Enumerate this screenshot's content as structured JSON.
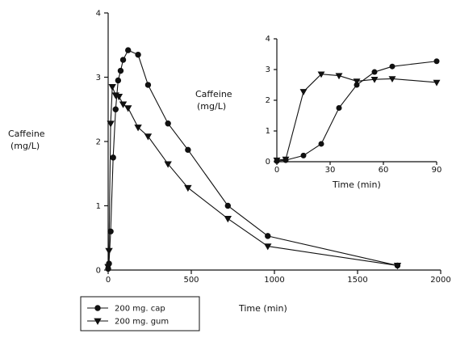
{
  "chart_data": [
    {
      "type": "line",
      "title": "",
      "ylabel_line1": "Caffeine",
      "ylabel_line2": "(mg/L)",
      "xlabel": "Time (min)",
      "xlim": [
        0,
        2000
      ],
      "ylim": [
        0,
        4
      ],
      "xticks": [
        0,
        500,
        1000,
        1500,
        2000
      ],
      "yticks": [
        0,
        1,
        2,
        3,
        4
      ],
      "grid": false,
      "legend_position": "bottom-left",
      "series": [
        {
          "name": "200 mg. cap",
          "marker": "circle",
          "x": [
            0,
            5,
            15,
            30,
            45,
            60,
            75,
            90,
            120,
            180,
            240,
            360,
            480,
            720,
            960,
            1740
          ],
          "y": [
            0.02,
            0.1,
            0.6,
            1.75,
            2.5,
            2.95,
            3.1,
            3.27,
            3.42,
            3.35,
            2.88,
            2.28,
            1.87,
            1.0,
            0.53,
            0.07
          ]
        },
        {
          "name": "200 mg. gum",
          "marker": "triangle-down",
          "x": [
            0,
            5,
            15,
            25,
            45,
            65,
            90,
            120,
            180,
            240,
            360,
            480,
            720,
            960,
            1740
          ],
          "y": [
            0.05,
            0.3,
            2.28,
            2.85,
            2.72,
            2.7,
            2.58,
            2.52,
            2.22,
            2.08,
            1.65,
            1.28,
            0.8,
            0.37,
            0.07
          ]
        }
      ]
    },
    {
      "type": "line",
      "title": "",
      "ylabel_line1": "Caffeine",
      "ylabel_line2": "(mg/L)",
      "xlabel": "Time (min)",
      "xlim": [
        0,
        90
      ],
      "ylim": [
        0,
        4
      ],
      "xticks": [
        0,
        30,
        60,
        90
      ],
      "yticks": [
        0,
        1,
        2,
        3,
        4
      ],
      "grid": false,
      "series": [
        {
          "name": "200 mg. cap",
          "marker": "circle",
          "x": [
            0,
            5,
            15,
            25,
            35,
            45,
            55,
            65,
            90
          ],
          "y": [
            0.02,
            0.05,
            0.2,
            0.58,
            1.75,
            2.5,
            2.92,
            3.1,
            3.27
          ]
        },
        {
          "name": "200 mg. gum",
          "marker": "triangle-down",
          "x": [
            0,
            5,
            15,
            25,
            35,
            45,
            55,
            65,
            90
          ],
          "y": [
            0.05,
            0.08,
            2.28,
            2.85,
            2.8,
            2.62,
            2.68,
            2.7,
            2.58
          ]
        }
      ]
    }
  ]
}
